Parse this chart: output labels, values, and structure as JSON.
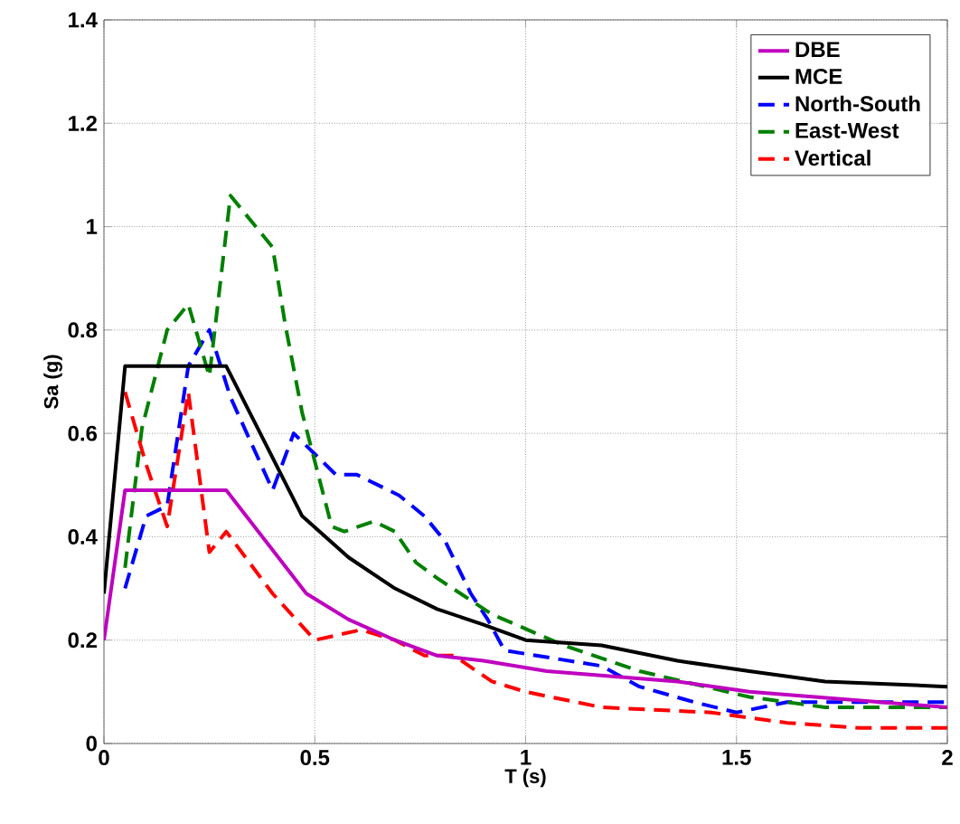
{
  "chart_data": {
    "type": "line",
    "xlabel": "T (s)",
    "ylabel": "Sa (g)",
    "xlim": [
      0,
      2
    ],
    "ylim": [
      0,
      1.4
    ],
    "xticks": [
      0,
      0.5,
      1,
      1.5,
      2
    ],
    "yticks": [
      0,
      0.2,
      0.4,
      0.6,
      0.8,
      1,
      1.2,
      1.4
    ],
    "grid": true,
    "legend": "top right",
    "marker": "none",
    "series": [
      {
        "name": "DBE",
        "color": "#bf00bf",
        "line_style": "solid",
        "x": [
          0,
          0.05,
          0.29,
          0.48,
          0.58,
          0.69,
          0.79,
          0.9,
          1.05,
          1.36,
          1.53,
          2
        ],
        "values": [
          0.2,
          0.49,
          0.49,
          0.29,
          0.24,
          0.2,
          0.17,
          0.16,
          0.14,
          0.12,
          0.1,
          0.07
        ]
      },
      {
        "name": "MCE",
        "color": "#000000",
        "line_style": "solid",
        "x": [
          0,
          0.05,
          0.29,
          0.47,
          0.58,
          0.69,
          0.79,
          0.9,
          1.0,
          1.18,
          1.36,
          1.53,
          1.71,
          2
        ],
        "values": [
          0.29,
          0.73,
          0.73,
          0.44,
          0.36,
          0.3,
          0.26,
          0.23,
          0.2,
          0.19,
          0.16,
          0.14,
          0.12,
          0.11
        ]
      },
      {
        "name": "North-South",
        "color": "#0000ff",
        "line_style": "dashed",
        "x": [
          0.05,
          0.1,
          0.15,
          0.2,
          0.25,
          0.3,
          0.4,
          0.45,
          0.5,
          0.55,
          0.6,
          0.7,
          0.76,
          0.81,
          0.87,
          0.91,
          0.95,
          1.18,
          1.27,
          1.4,
          1.5,
          1.62,
          2
        ],
        "values": [
          0.3,
          0.44,
          0.46,
          0.73,
          0.8,
          0.67,
          0.49,
          0.6,
          0.56,
          0.52,
          0.52,
          0.48,
          0.44,
          0.39,
          0.29,
          0.24,
          0.18,
          0.15,
          0.11,
          0.08,
          0.06,
          0.08,
          0.08
        ]
      },
      {
        "name": "East-West",
        "color": "#008000",
        "line_style": "dashed",
        "x": [
          0.05,
          0.09,
          0.15,
          0.2,
          0.25,
          0.3,
          0.4,
          0.43,
          0.47,
          0.54,
          0.57,
          0.64,
          0.69,
          0.74,
          0.79,
          0.92,
          1.09,
          1.27,
          1.53,
          1.71,
          2
        ],
        "values": [
          0.34,
          0.61,
          0.8,
          0.85,
          0.71,
          1.06,
          0.96,
          0.81,
          0.64,
          0.42,
          0.41,
          0.43,
          0.41,
          0.35,
          0.32,
          0.25,
          0.19,
          0.14,
          0.09,
          0.07,
          0.07
        ]
      },
      {
        "name": "Vertical",
        "color": "#ff0000",
        "line_style": "dashed",
        "x": [
          0.05,
          0.1,
          0.15,
          0.2,
          0.25,
          0.29,
          0.4,
          0.5,
          0.61,
          0.69,
          0.76,
          0.83,
          0.92,
          1.0,
          1.18,
          1.44,
          1.62,
          1.79,
          2
        ],
        "values": [
          0.68,
          0.54,
          0.42,
          0.68,
          0.37,
          0.41,
          0.29,
          0.2,
          0.22,
          0.2,
          0.17,
          0.17,
          0.12,
          0.1,
          0.07,
          0.06,
          0.04,
          0.03,
          0.03
        ]
      }
    ]
  }
}
